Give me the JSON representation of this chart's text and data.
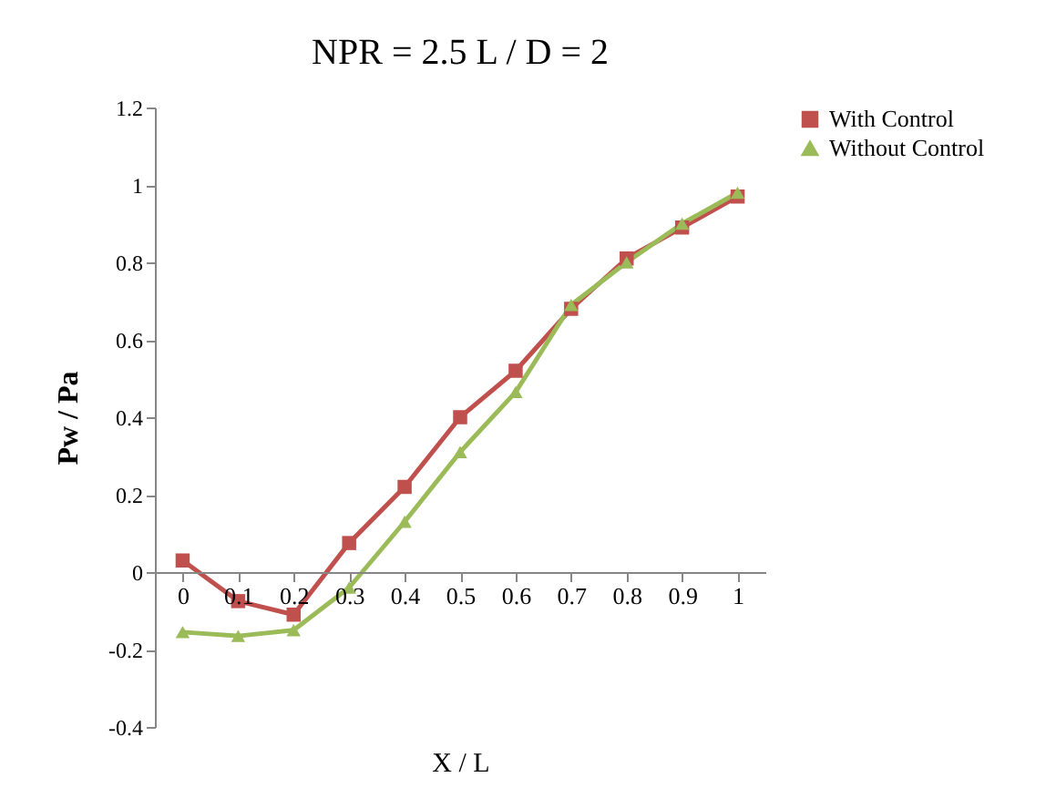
{
  "chart_data": {
    "type": "line",
    "title": "NPR = 2.5 L / D = 2",
    "xlabel": "X / L",
    "ylabel": "Pw / Pa",
    "categories": [
      "0",
      "0.1",
      "0.2",
      "0.3",
      "0.4",
      "0.5",
      "0.6",
      "0.7",
      "0.8",
      "0.9",
      "1"
    ],
    "series": [
      {
        "name": "With Control",
        "color": "#c0504d",
        "marker": "square",
        "values": [
          0.03,
          -0.075,
          -0.11,
          0.075,
          0.22,
          0.4,
          0.52,
          0.68,
          0.81,
          0.89,
          0.97
        ]
      },
      {
        "name": "Without Control",
        "color": "#9bbb59",
        "marker": "triangle",
        "values": [
          -0.155,
          -0.165,
          -0.15,
          -0.04,
          0.13,
          0.31,
          0.465,
          0.69,
          0.8,
          0.9,
          0.98
        ]
      }
    ],
    "ylim": [
      -0.4,
      1.2
    ],
    "yticks": [
      -0.4,
      -0.2,
      0,
      0.2,
      0.4,
      0.6,
      0.8,
      1,
      1.2
    ],
    "grid": false,
    "legend": "right",
    "line_style": "solid"
  }
}
